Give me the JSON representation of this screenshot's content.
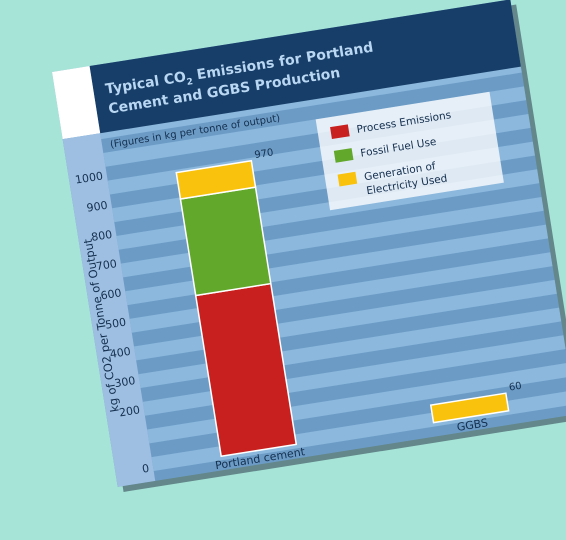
{
  "chart_data": {
    "type": "bar",
    "stacked": true,
    "title": "Typical CO₂ Emissions for Portland Cement and GGBS Production",
    "title_line1_prefix": "Typical CO",
    "title_line1_sub": "2",
    "title_line1_suffix": " Emissions for Portland",
    "title_line2": "Cement and GGBS Production",
    "subtitle": "(Figures in kg per tonne of output)",
    "ylabel": "kg of CO2 per Tonne of Output",
    "xlabel": "",
    "ylim": [
      0,
      1000
    ],
    "yticks": [
      0,
      200,
      300,
      400,
      500,
      600,
      700,
      800,
      900,
      1000
    ],
    "categories": [
      "Portland cement",
      "GGBS"
    ],
    "series": [
      {
        "name": "Process Emissions",
        "color": "#c8201e",
        "values": [
          550,
          0
        ]
      },
      {
        "name": "Fossil Fuel Use",
        "color": "#62a82b",
        "values": [
          330,
          0
        ]
      },
      {
        "name": "Generation of Electricity Used",
        "color": "#f9c20d",
        "values": [
          90,
          60
        ]
      }
    ],
    "totals": [
      970,
      60
    ],
    "total_labels": [
      "970",
      "60"
    ],
    "legend": [
      {
        "label_lines": [
          "Process Emissions"
        ],
        "color": "#c8201e"
      },
      {
        "label_lines": [
          "Fossil Fuel Use"
        ],
        "color": "#62a82b"
      },
      {
        "label_lines": [
          "Generation of",
          "Electricity Used"
        ],
        "color": "#f9c20d"
      }
    ],
    "legend_position": "top-right",
    "grid": true
  },
  "colors": {
    "page_background": "#a6e4d7",
    "panel_blue": "#6c9cc6",
    "stripe_light": "#8cb8dd",
    "stripe_dark": "#5b8cbb",
    "header_navy": "#173e68",
    "axis_column": "#9ebfe2",
    "title_text": "#b9d7f2"
  }
}
